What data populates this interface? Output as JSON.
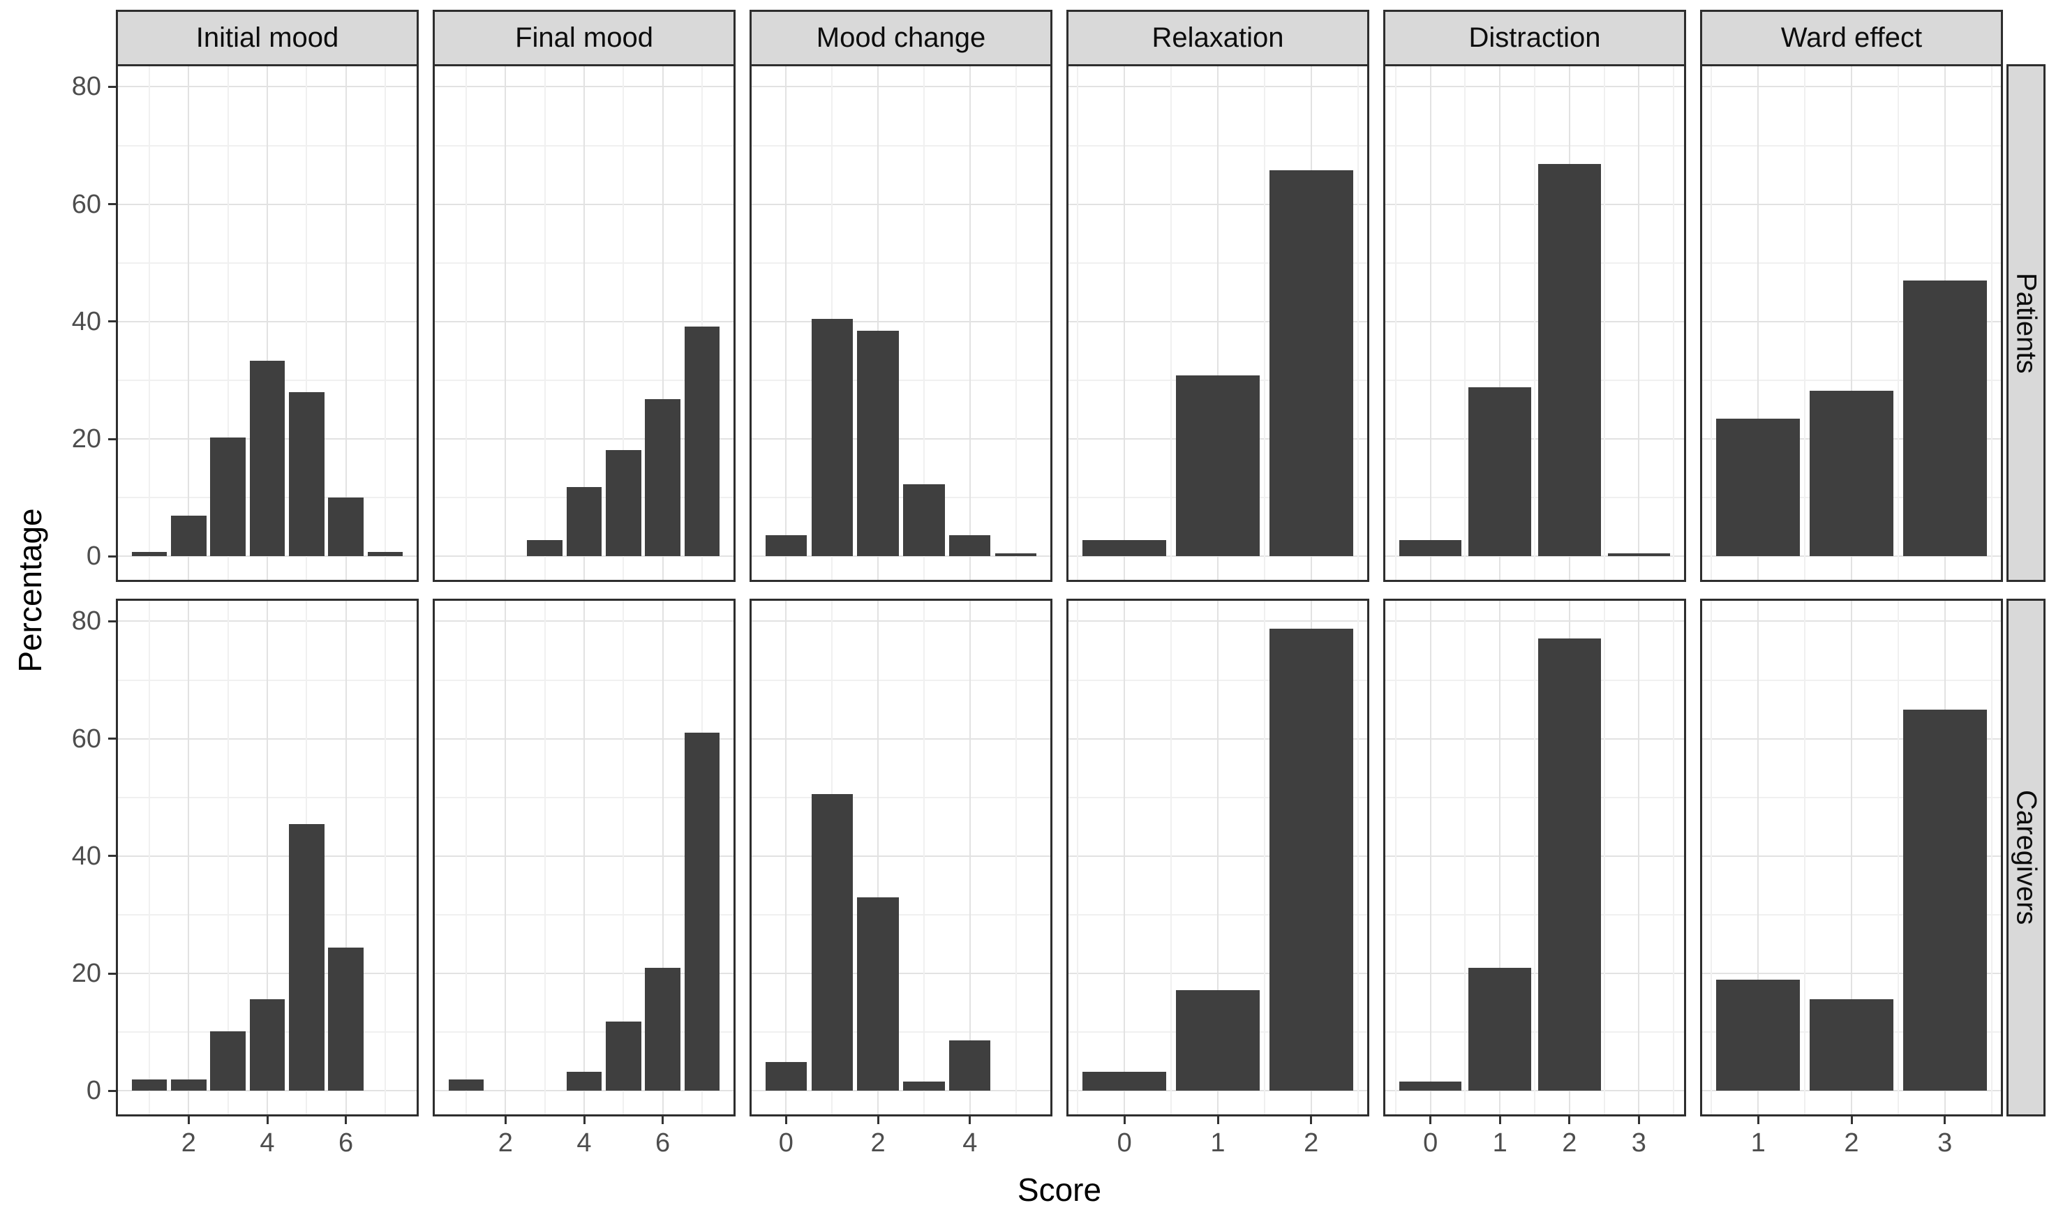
{
  "chart_data": {
    "type": "bar",
    "title": "",
    "xlabel": "Score",
    "ylabel": "Percentage",
    "ylim": [
      0,
      80
    ],
    "yticks": [
      0,
      20,
      40,
      60,
      80
    ],
    "y_minor": [
      10,
      30,
      50,
      70
    ],
    "grid": "on",
    "legend": "none",
    "bar_width": 0.9,
    "facet_row_labels": [
      "Patients",
      "Caregivers"
    ],
    "facet_cols": [
      {
        "label": "Initial mood",
        "xdomain": [
          0.2,
          7.8
        ],
        "xticks": [
          2,
          4,
          6
        ],
        "x_minor": [
          1,
          3,
          5,
          7
        ]
      },
      {
        "label": "Final mood",
        "xdomain": [
          0.2,
          7.8
        ],
        "xticks": [
          2,
          4,
          6
        ],
        "x_minor": [
          1,
          3,
          5,
          7
        ]
      },
      {
        "label": "Mood change",
        "xdomain": [
          -0.75,
          5.75
        ],
        "xticks": [
          0,
          2,
          4
        ],
        "x_minor": [
          1,
          3,
          5
        ]
      },
      {
        "label": "Relaxation",
        "xdomain": [
          -0.6,
          2.6
        ],
        "xticks": [
          0,
          1,
          2
        ],
        "x_minor": [
          -0.5,
          0.5,
          1.5,
          2.5
        ]
      },
      {
        "label": "Distraction",
        "xdomain": [
          -0.65,
          3.65
        ],
        "xticks": [
          0,
          1,
          2,
          3
        ],
        "x_minor": [
          -0.5,
          0.5,
          1.5,
          2.5,
          3.5
        ]
      },
      {
        "label": "Ward effect",
        "xdomain": [
          0.4,
          3.6
        ],
        "xticks": [
          1,
          2,
          3
        ],
        "x_minor": [
          0.5,
          1.5,
          2.5,
          3.5
        ]
      }
    ],
    "panels": [
      {
        "facet_row": "Patients",
        "facet_col": "Initial mood",
        "x": [
          1,
          2,
          3,
          4,
          5,
          6,
          7
        ],
        "values": [
          0.7,
          6.9,
          20.3,
          33.3,
          28.0,
          10.0,
          0.7
        ]
      },
      {
        "facet_row": "Patients",
        "facet_col": "Final mood",
        "x": [
          3,
          4,
          5,
          6,
          7
        ],
        "values": [
          2.8,
          11.8,
          18.1,
          26.8,
          39.2
        ]
      },
      {
        "facet_row": "Patients",
        "facet_col": "Mood change",
        "x": [
          0,
          1,
          2,
          3,
          4,
          5
        ],
        "values": [
          3.6,
          40.5,
          38.5,
          12.3,
          3.6,
          0.5
        ]
      },
      {
        "facet_row": "Patients",
        "facet_col": "Relaxation",
        "x": [
          0,
          1,
          2
        ],
        "values": [
          2.8,
          30.8,
          65.8
        ]
      },
      {
        "facet_row": "Patients",
        "facet_col": "Distraction",
        "x": [
          0,
          1,
          2,
          3
        ],
        "values": [
          2.8,
          28.8,
          66.8,
          0.5
        ]
      },
      {
        "facet_row": "Patients",
        "facet_col": "Ward effect",
        "x": [
          1,
          2,
          3
        ],
        "values": [
          23.5,
          28.2,
          47.0
        ]
      },
      {
        "facet_row": "Caregivers",
        "facet_col": "Initial mood",
        "x": [
          1,
          2,
          3,
          4,
          5,
          6
        ],
        "values": [
          2.0,
          2.0,
          10.2,
          15.6,
          45.4,
          24.4
        ]
      },
      {
        "facet_row": "Caregivers",
        "facet_col": "Final mood",
        "x": [
          1,
          4,
          5,
          6,
          7
        ],
        "values": [
          1.9,
          3.2,
          11.8,
          21.0,
          61.0
        ]
      },
      {
        "facet_row": "Caregivers",
        "facet_col": "Mood change",
        "x": [
          0,
          1,
          2,
          3,
          4
        ],
        "values": [
          4.9,
          50.6,
          33.0,
          1.6,
          8.6
        ]
      },
      {
        "facet_row": "Caregivers",
        "facet_col": "Relaxation",
        "x": [
          0,
          1,
          2
        ],
        "values": [
          3.2,
          17.2,
          78.8
        ]
      },
      {
        "facet_row": "Caregivers",
        "facet_col": "Distraction",
        "x": [
          0,
          1,
          2,
          3
        ],
        "values": [
          1.6,
          21.0,
          77.1,
          0
        ]
      },
      {
        "facet_row": "Caregivers",
        "facet_col": "Ward effect",
        "x": [
          1,
          2,
          3
        ],
        "values": [
          19.0,
          15.6,
          64.9
        ]
      }
    ],
    "colors": {
      "bar": "#3f3f3f",
      "strip_bg": "#d9d9d9",
      "panel_border": "#2e2e2e",
      "grid_major": "#e2e2e2",
      "grid_minor": "#f0f0f0",
      "tick_text": "#4d4d4d",
      "title_text": "#000000"
    }
  }
}
